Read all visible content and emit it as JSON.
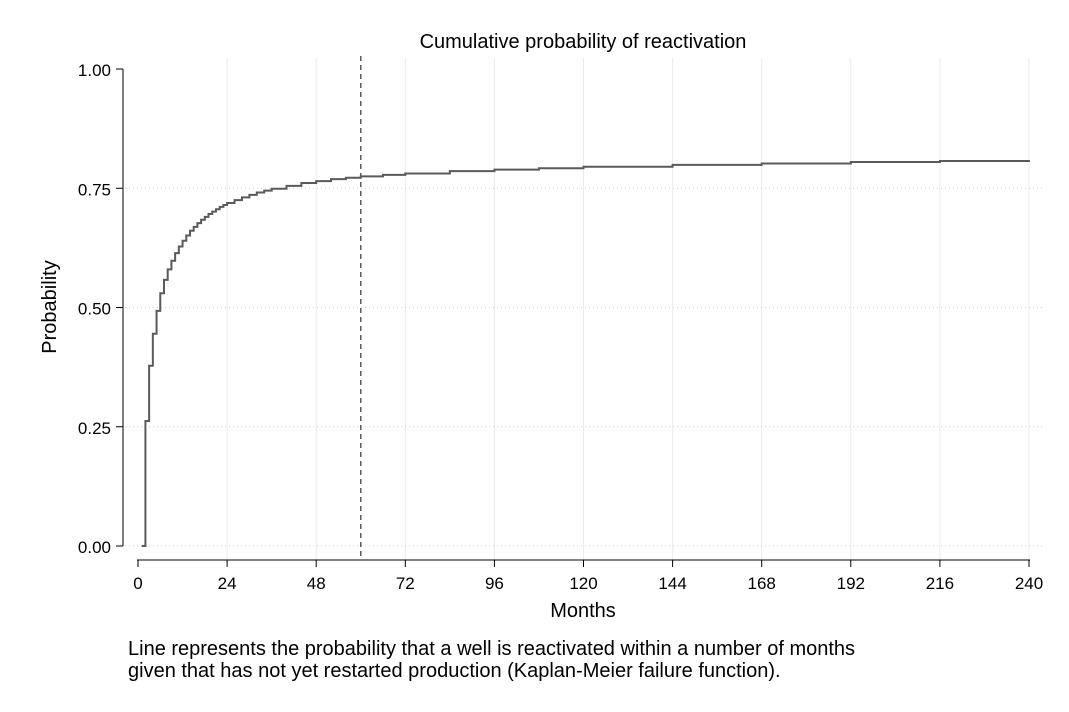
{
  "chart_data": {
    "type": "line",
    "title": "Cumulative probability of reactivation",
    "xlabel": "Months",
    "ylabel": "Probability",
    "xlim": [
      0,
      240
    ],
    "ylim": [
      0,
      1
    ],
    "xticks": [
      0,
      24,
      48,
      72,
      96,
      120,
      144,
      168,
      192,
      216,
      240
    ],
    "xtick_labels": [
      "0",
      "24",
      "48",
      "72",
      "96",
      "120",
      "144",
      "168",
      "192",
      "216",
      "240"
    ],
    "yticks": [
      0,
      0.25,
      0.5,
      0.75,
      1
    ],
    "ytick_labels": [
      "0.00",
      "0.25",
      "0.50",
      "0.75",
      "1.00"
    ],
    "grid": true,
    "reference_line": {
      "axis": "x",
      "value": 60,
      "style": "dashed"
    },
    "series": [
      {
        "step": true,
        "color": "#5a5a5a",
        "x": [
          1,
          2,
          3,
          4,
          5,
          6,
          7,
          8,
          9,
          10,
          11,
          12,
          13,
          14,
          15,
          16,
          17,
          18,
          19,
          20,
          21,
          22,
          23,
          24,
          26,
          28,
          30,
          32,
          34,
          36,
          40,
          44,
          48,
          52,
          56,
          60,
          66,
          72,
          84,
          96,
          108,
          120,
          144,
          168,
          192,
          216,
          240
        ],
        "y": [
          0,
          0.262,
          0.378,
          0.445,
          0.493,
          0.53,
          0.558,
          0.58,
          0.598,
          0.614,
          0.628,
          0.64,
          0.651,
          0.661,
          0.669,
          0.677,
          0.684,
          0.69,
          0.696,
          0.701,
          0.706,
          0.711,
          0.715,
          0.719,
          0.725,
          0.731,
          0.736,
          0.741,
          0.745,
          0.749,
          0.755,
          0.761,
          0.765,
          0.769,
          0.772,
          0.775,
          0.778,
          0.781,
          0.786,
          0.789,
          0.792,
          0.795,
          0.799,
          0.802,
          0.805,
          0.807,
          0.809
        ]
      }
    ]
  },
  "note": {
    "line1": "Line represents the probability that a well is reactivated within a number of months",
    "line2": "given that has not yet restarted production (Kaplan-Meier failure function)."
  }
}
